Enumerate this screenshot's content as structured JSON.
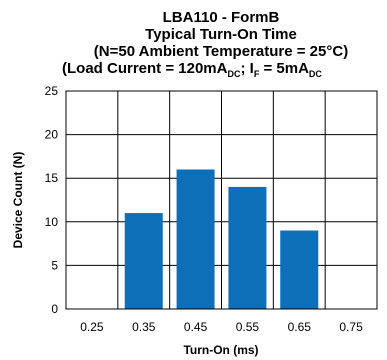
{
  "chart_data": {
    "type": "bar",
    "title_lines": [
      "LBA110 - FormB",
      "Typical Turn-On Time",
      "(N=50 Ambient Temperature = 25°C)"
    ],
    "title_line4": {
      "part1": "(Load Current = 120mA",
      "sub1": "DC",
      "part2": "; I",
      "sub2": "F",
      "part3": " = 5mA",
      "sub3": "DC"
    },
    "categories": [
      "0.25",
      "0.35",
      "0.45",
      "0.55",
      "0.65",
      "0.75"
    ],
    "values": [
      0,
      11,
      16,
      14,
      9,
      0
    ],
    "yticks": [
      0,
      5,
      10,
      15,
      20,
      25
    ],
    "ylim": [
      0,
      25
    ],
    "xlabel": "Turn-On (ms)",
    "ylabel": "Device Count (N)",
    "grid": true,
    "bar_color": "#0d6fb8",
    "grid_color": "#000000"
  }
}
